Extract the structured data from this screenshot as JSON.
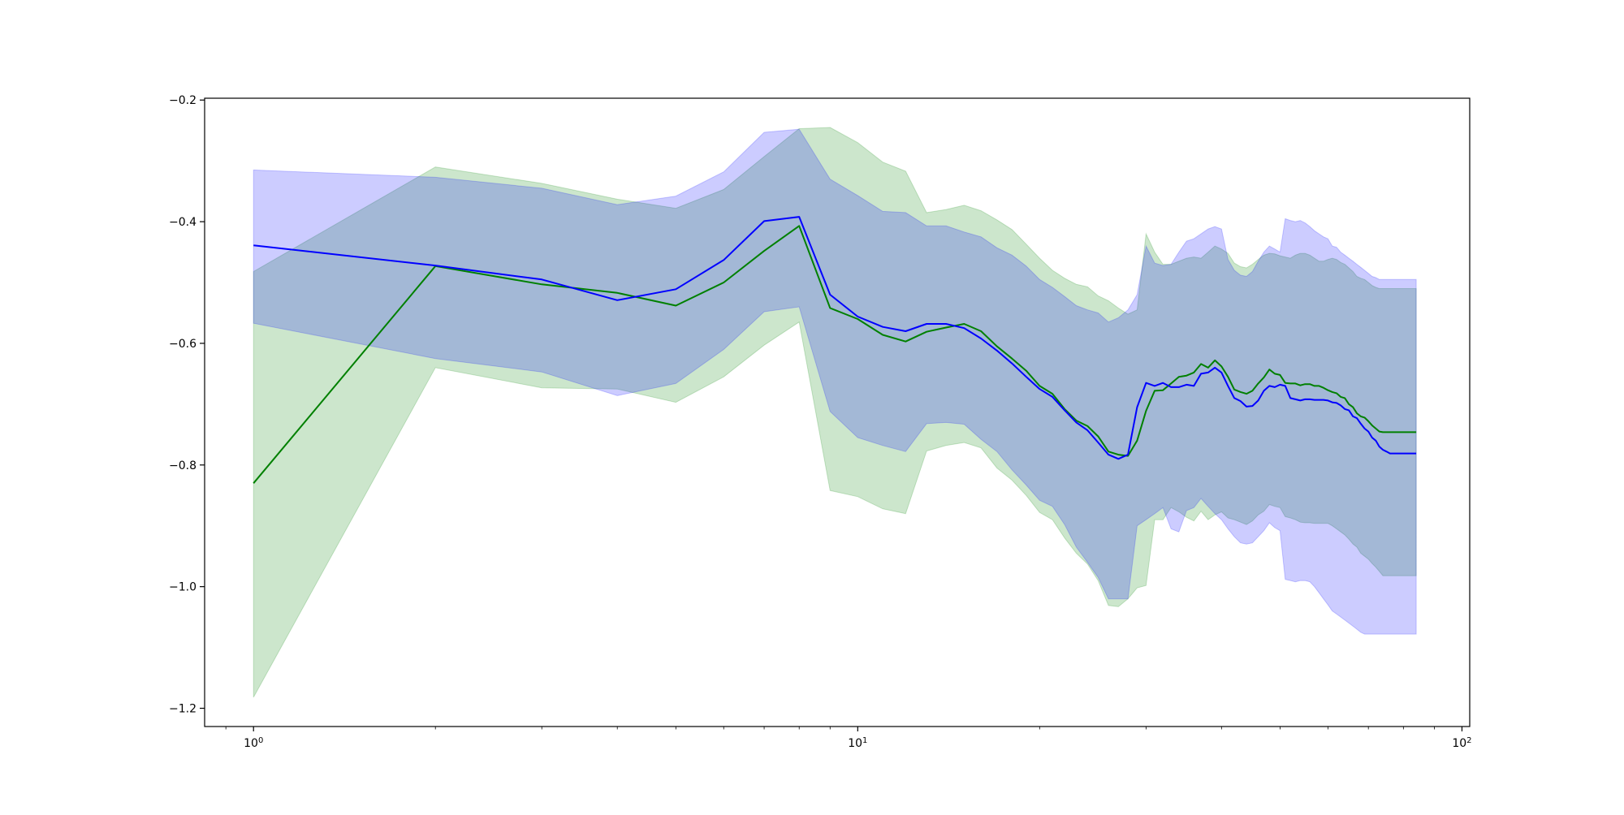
{
  "chart_data": {
    "type": "line",
    "title": "",
    "xlabel": "",
    "ylabel": "",
    "xscale": "log",
    "xlim": [
      0.83,
      103
    ],
    "ylim": [
      -1.23,
      -0.197
    ],
    "grid": false,
    "legend": "none",
    "x_tick_labels": [
      {
        "base": "10",
        "exp": "0",
        "value": 1
      },
      {
        "base": "10",
        "exp": "1",
        "value": 10
      },
      {
        "base": "10",
        "exp": "2",
        "value": 100
      }
    ],
    "y_tick_labels": [
      {
        "label": "−0.2",
        "value": -0.2
      },
      {
        "label": "−0.4",
        "value": -0.4
      },
      {
        "label": "−0.6",
        "value": -0.6
      },
      {
        "label": "−0.8",
        "value": -0.8
      },
      {
        "label": "−1.0",
        "value": -1.0
      },
      {
        "label": "−1.2",
        "value": -1.2
      }
    ],
    "series": [
      {
        "line_color": "#008000",
        "band_color": "#008000",
        "band_opacity": 0.2,
        "x": [
          1,
          2,
          3,
          4,
          5,
          6,
          7,
          8,
          9,
          10,
          11,
          12,
          13,
          14,
          15,
          16,
          17,
          18,
          19,
          20,
          21,
          22,
          23,
          24,
          25,
          26,
          27,
          28,
          29,
          30,
          31,
          32,
          33,
          34,
          35,
          36,
          37,
          38,
          39,
          40,
          41,
          42,
          43,
          44,
          45,
          46,
          47,
          48,
          49,
          50,
          51,
          52,
          53,
          54,
          55,
          56,
          57,
          58,
          59,
          60,
          61,
          62,
          63,
          64,
          65,
          66,
          67,
          68,
          69,
          70,
          71,
          72,
          73,
          74,
          75,
          76,
          77,
          78,
          79,
          80,
          81,
          82,
          83,
          84
        ],
        "values": [
          -0.83,
          -0.473,
          -0.503,
          -0.517,
          -0.538,
          -0.5,
          -0.448,
          -0.407,
          -0.542,
          -0.56,
          -0.586,
          -0.597,
          -0.581,
          -0.574,
          -0.568,
          -0.58,
          -0.605,
          -0.625,
          -0.645,
          -0.67,
          -0.683,
          -0.708,
          -0.727,
          -0.736,
          -0.753,
          -0.778,
          -0.783,
          -0.785,
          -0.76,
          -0.711,
          -0.678,
          -0.677,
          -0.666,
          -0.655,
          -0.653,
          -0.648,
          -0.634,
          -0.64,
          -0.628,
          -0.638,
          -0.655,
          -0.676,
          -0.68,
          -0.683,
          -0.678,
          -0.666,
          -0.656,
          -0.643,
          -0.65,
          -0.652,
          -0.665,
          -0.666,
          -0.666,
          -0.669,
          -0.667,
          -0.667,
          -0.67,
          -0.67,
          -0.673,
          -0.677,
          -0.68,
          -0.682,
          -0.688,
          -0.69,
          -0.7,
          -0.705,
          -0.715,
          -0.72,
          -0.722,
          -0.728,
          -0.735,
          -0.74,
          -0.745,
          -0.746,
          -0.746,
          -0.746,
          -0.746,
          -0.746,
          -0.746,
          -0.746,
          -0.746,
          -0.746,
          -0.746,
          -0.746
        ],
        "upper": [
          -0.482,
          -0.31,
          -0.337,
          -0.363,
          -0.378,
          -0.347,
          -0.293,
          -0.247,
          -0.245,
          -0.27,
          -0.302,
          -0.317,
          -0.385,
          -0.38,
          -0.373,
          -0.382,
          -0.397,
          -0.413,
          -0.437,
          -0.46,
          -0.48,
          -0.493,
          -0.503,
          -0.507,
          -0.522,
          -0.53,
          -0.542,
          -0.552,
          -0.545,
          -0.42,
          -0.45,
          -0.47,
          -0.47,
          -0.465,
          -0.46,
          -0.458,
          -0.46,
          -0.45,
          -0.44,
          -0.445,
          -0.452,
          -0.468,
          -0.474,
          -0.476,
          -0.47,
          -0.462,
          -0.455,
          -0.452,
          -0.453,
          -0.456,
          -0.458,
          -0.46,
          -0.455,
          -0.452,
          -0.452,
          -0.455,
          -0.46,
          -0.465,
          -0.465,
          -0.462,
          -0.46,
          -0.462,
          -0.467,
          -0.47,
          -0.476,
          -0.482,
          -0.49,
          -0.493,
          -0.495,
          -0.5,
          -0.505,
          -0.508,
          -0.51,
          -0.51,
          -0.51,
          -0.51,
          -0.51,
          -0.51,
          -0.51,
          -0.51,
          -0.51,
          -0.51,
          -0.51,
          -0.51
        ],
        "lower": [
          -1.182,
          -0.64,
          -0.673,
          -0.675,
          -0.697,
          -0.655,
          -0.603,
          -0.565,
          -0.842,
          -0.852,
          -0.872,
          -0.88,
          -0.777,
          -0.768,
          -0.763,
          -0.772,
          -0.805,
          -0.825,
          -0.85,
          -0.878,
          -0.89,
          -0.92,
          -0.945,
          -0.963,
          -0.99,
          -1.031,
          -1.033,
          -1.02,
          -1.002,
          -0.998,
          -0.89,
          -0.89,
          -0.87,
          -0.877,
          -0.886,
          -0.892,
          -0.876,
          -0.89,
          -0.882,
          -0.877,
          -0.887,
          -0.89,
          -0.894,
          -0.898,
          -0.892,
          -0.882,
          -0.876,
          -0.865,
          -0.868,
          -0.87,
          -0.885,
          -0.887,
          -0.89,
          -0.894,
          -0.895,
          -0.895,
          -0.896,
          -0.896,
          -0.896,
          -0.896,
          -0.9,
          -0.905,
          -0.91,
          -0.915,
          -0.922,
          -0.93,
          -0.935,
          -0.945,
          -0.95,
          -0.955,
          -0.962,
          -0.968,
          -0.975,
          -0.982,
          -0.982,
          -0.982,
          -0.982,
          -0.982,
          -0.982,
          -0.982,
          -0.982,
          -0.982,
          -0.982,
          -0.982
        ]
      },
      {
        "line_color": "#0000ff",
        "band_color": "#0000ff",
        "band_opacity": 0.2,
        "x": [
          1,
          2,
          3,
          4,
          5,
          6,
          7,
          8,
          9,
          10,
          11,
          12,
          13,
          14,
          15,
          16,
          17,
          18,
          19,
          20,
          21,
          22,
          23,
          24,
          25,
          26,
          27,
          28,
          29,
          30,
          31,
          32,
          33,
          34,
          35,
          36,
          37,
          38,
          39,
          40,
          41,
          42,
          43,
          44,
          45,
          46,
          47,
          48,
          49,
          50,
          51,
          52,
          53,
          54,
          55,
          56,
          57,
          58,
          59,
          60,
          61,
          62,
          63,
          64,
          65,
          66,
          67,
          68,
          69,
          70,
          71,
          72,
          73,
          74,
          75,
          76,
          77,
          78,
          79,
          80,
          81,
          82,
          83,
          84
        ],
        "values": [
          -0.439,
          -0.472,
          -0.495,
          -0.529,
          -0.511,
          -0.463,
          -0.399,
          -0.392,
          -0.52,
          -0.556,
          -0.573,
          -0.58,
          -0.568,
          -0.568,
          -0.575,
          -0.592,
          -0.612,
          -0.633,
          -0.655,
          -0.675,
          -0.688,
          -0.71,
          -0.73,
          -0.743,
          -0.763,
          -0.783,
          -0.79,
          -0.783,
          -0.705,
          -0.665,
          -0.67,
          -0.665,
          -0.672,
          -0.672,
          -0.668,
          -0.67,
          -0.65,
          -0.648,
          -0.64,
          -0.648,
          -0.67,
          -0.69,
          -0.695,
          -0.704,
          -0.703,
          -0.694,
          -0.678,
          -0.67,
          -0.672,
          -0.668,
          -0.67,
          -0.69,
          -0.692,
          -0.694,
          -0.692,
          -0.692,
          -0.693,
          -0.693,
          -0.693,
          -0.694,
          -0.697,
          -0.698,
          -0.702,
          -0.708,
          -0.71,
          -0.72,
          -0.723,
          -0.732,
          -0.74,
          -0.745,
          -0.755,
          -0.76,
          -0.77,
          -0.775,
          -0.778,
          -0.781,
          -0.781,
          -0.781,
          -0.781,
          -0.781,
          -0.781,
          -0.781,
          -0.781,
          -0.781
        ],
        "upper": [
          -0.315,
          -0.327,
          -0.345,
          -0.372,
          -0.358,
          -0.318,
          -0.253,
          -0.248,
          -0.33,
          -0.357,
          -0.383,
          -0.385,
          -0.407,
          -0.407,
          -0.417,
          -0.425,
          -0.443,
          -0.455,
          -0.473,
          -0.495,
          -0.508,
          -0.523,
          -0.538,
          -0.545,
          -0.55,
          -0.565,
          -0.558,
          -0.545,
          -0.52,
          -0.44,
          -0.468,
          -0.472,
          -0.47,
          -0.45,
          -0.432,
          -0.428,
          -0.42,
          -0.412,
          -0.408,
          -0.412,
          -0.462,
          -0.48,
          -0.488,
          -0.49,
          -0.482,
          -0.465,
          -0.45,
          -0.44,
          -0.445,
          -0.45,
          -0.395,
          -0.398,
          -0.4,
          -0.398,
          -0.402,
          -0.408,
          -0.415,
          -0.42,
          -0.425,
          -0.428,
          -0.44,
          -0.442,
          -0.45,
          -0.455,
          -0.46,
          -0.465,
          -0.47,
          -0.475,
          -0.48,
          -0.485,
          -0.49,
          -0.492,
          -0.495,
          -0.495,
          -0.495,
          -0.495,
          -0.495,
          -0.495,
          -0.495,
          -0.495,
          -0.495,
          -0.495,
          -0.495,
          -0.495
        ],
        "lower": [
          -0.567,
          -0.625,
          -0.647,
          -0.686,
          -0.666,
          -0.61,
          -0.548,
          -0.54,
          -0.712,
          -0.755,
          -0.768,
          -0.778,
          -0.732,
          -0.73,
          -0.733,
          -0.758,
          -0.778,
          -0.808,
          -0.833,
          -0.858,
          -0.868,
          -0.898,
          -0.935,
          -0.96,
          -0.985,
          -1.02,
          -1.02,
          -1.02,
          -0.9,
          -0.89,
          -0.88,
          -0.87,
          -0.905,
          -0.91,
          -0.875,
          -0.87,
          -0.855,
          -0.868,
          -0.88,
          -0.89,
          -0.905,
          -0.918,
          -0.928,
          -0.93,
          -0.928,
          -0.918,
          -0.908,
          -0.895,
          -0.903,
          -0.908,
          -0.988,
          -0.99,
          -0.992,
          -0.99,
          -0.99,
          -0.992,
          -1.0,
          -1.01,
          -1.02,
          -1.03,
          -1.04,
          -1.045,
          -1.05,
          -1.055,
          -1.06,
          -1.065,
          -1.07,
          -1.075,
          -1.078,
          -1.078,
          -1.078,
          -1.078,
          -1.078,
          -1.078,
          -1.078,
          -1.078,
          -1.078,
          -1.078,
          -1.078,
          -1.078,
          -1.078,
          -1.078,
          -1.078,
          -1.078
        ]
      }
    ]
  }
}
